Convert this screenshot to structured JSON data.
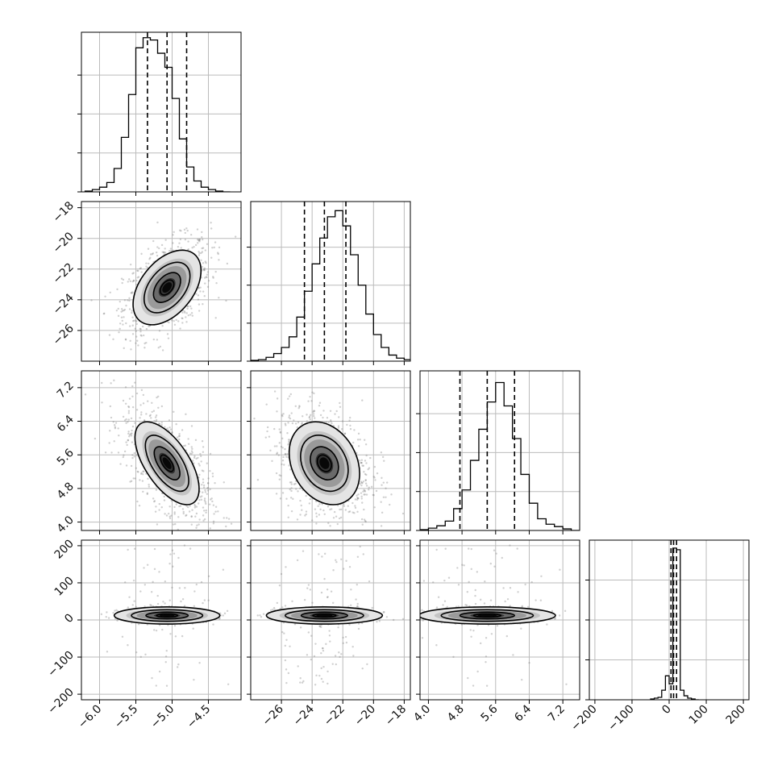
{
  "chart_data": {
    "type": "scatter",
    "figure_type": "corner plot",
    "grid": true,
    "n_params": 4,
    "params": [
      {
        "range": [
          -6.25,
          -4.05
        ],
        "ticks": [
          -6.0,
          -5.5,
          -5.0,
          -4.5
        ],
        "tick_labels": [
          "−6.0",
          "−5.5",
          "−5.0",
          "−4.5"
        ],
        "quantiles": [
          -5.34,
          -5.07,
          -4.8
        ],
        "mean": -5.07,
        "sd": 0.26
      },
      {
        "range": [
          -28.0,
          -17.6
        ],
        "ticks": [
          -26,
          -24,
          -22,
          -20,
          -18
        ],
        "tick_labels": [
          "−26",
          "−24",
          "−22",
          "−20",
          "−18"
        ],
        "quantiles": [
          -24.5,
          -23.2,
          -21.8
        ],
        "mean": -23.2,
        "sd": 1.35
      },
      {
        "range": [
          3.8,
          7.6
        ],
        "ticks": [
          4.0,
          4.8,
          5.6,
          6.4,
          7.2
        ],
        "tick_labels": [
          "4.0",
          "4.8",
          "5.6",
          "6.4",
          "7.2"
        ],
        "quantiles": [
          4.75,
          5.4,
          6.05
        ],
        "mean": 5.4,
        "sd": 0.58
      },
      {
        "range": [
          -215,
          215
        ],
        "ticks": [
          -200,
          -100,
          0,
          100,
          200
        ],
        "tick_labels": [
          "−200",
          "−100",
          "0",
          "100",
          "200"
        ],
        "quantiles": [
          5,
          12,
          20
        ],
        "mean": 12,
        "sd": 15
      }
    ],
    "histograms": [
      {
        "param": 0,
        "bin_start": -6.2,
        "bin_width": 0.1,
        "counts": [
          1,
          3,
          6,
          12,
          30,
          70,
          125,
          185,
          198,
          195,
          178,
          160,
          120,
          68,
          32,
          14,
          6,
          3,
          1,
          0
        ],
        "ymax": 205,
        "yticks": [
          0,
          50,
          100,
          150
        ]
      },
      {
        "param": 1,
        "bin_start": -28.0,
        "bin_width": 0.5,
        "counts": [
          1,
          2,
          5,
          10,
          18,
          32,
          58,
          92,
          128,
          162,
          190,
          198,
          178,
          140,
          100,
          62,
          35,
          18,
          8,
          4,
          2,
          1
        ],
        "ymax": 210,
        "yticks": [
          0,
          50,
          100,
          150
        ]
      },
      {
        "param": 2,
        "bin_start": 3.8,
        "bin_width": 0.2,
        "counts": [
          1,
          3,
          6,
          12,
          28,
          52,
          90,
          130,
          165,
          190,
          160,
          118,
          72,
          35,
          15,
          8,
          5,
          2,
          0
        ],
        "ymax": 205,
        "yticks": [
          0,
          50,
          100,
          150
        ]
      },
      {
        "param": 3,
        "bin_start": -50,
        "bin_width": 10,
        "counts": [
          1,
          2,
          3,
          12,
          30,
          20,
          190,
          188,
          12,
          5,
          2,
          1,
          0
        ],
        "ymax": 200,
        "yticks": [
          0,
          50,
          100,
          150
        ]
      }
    ],
    "pairs": [
      {
        "x": 0,
        "y": 1,
        "corr": 0.45,
        "contour_scale": 0.9
      },
      {
        "x": 0,
        "y": 2,
        "corr": -0.62,
        "contour_scale": 0.85
      },
      {
        "x": 1,
        "y": 2,
        "corr": -0.25,
        "contour_scale": 0.85
      },
      {
        "x": 0,
        "y": 3,
        "corr": 0.0,
        "contour_scale": 1.4,
        "y_scale": 0.55
      },
      {
        "x": 1,
        "y": 3,
        "corr": 0.0,
        "contour_scale": 1.4,
        "y_scale": 0.55
      },
      {
        "x": 2,
        "y": 3,
        "corr": 0.0,
        "contour_scale": 1.4,
        "y_scale": 0.55
      }
    ],
    "line_color": "#000000",
    "scatter_color": "#777777",
    "grid_color": "#bbbbbb",
    "density_colors": [
      "#e4e4e4",
      "#c4c4c4",
      "#9a9a9a",
      "#6a6a6a",
      "#333333",
      "#080808"
    ]
  }
}
